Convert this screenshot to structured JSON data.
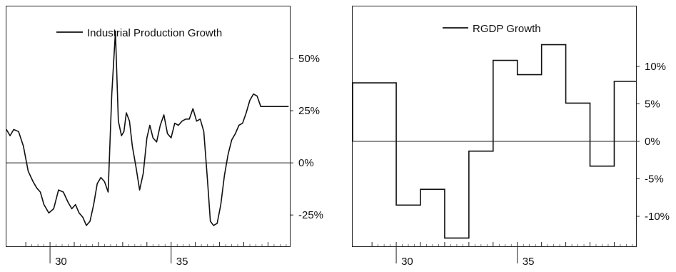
{
  "chart_data": [
    {
      "type": "line",
      "legend": "Industrial Production Growth",
      "legend_position": "top-center",
      "grid": false,
      "xlim": [
        1928.2,
        1939.9
      ],
      "ylim": [
        -40,
        75
      ],
      "x_ticks": [
        1930,
        1935
      ],
      "x_tick_labels": [
        "30",
        "35"
      ],
      "y_ticks": [
        -25,
        0,
        25,
        50
      ],
      "y_tick_labels": [
        "-25%",
        "0%",
        "25%",
        "50%"
      ],
      "x": [
        1928.2,
        1928.4,
        1928.6,
        1928.8,
        1929.0,
        1929.2,
        1929.4,
        1929.6,
        1929.8,
        1930.0,
        1930.2,
        1930.4,
        1930.6,
        1930.8,
        1931.0,
        1931.2,
        1931.4,
        1931.6,
        1931.8,
        1932.0,
        1932.2,
        1932.4,
        1932.6,
        1932.8,
        1932.9,
        1933.0,
        1933.1,
        1933.2,
        1933.35,
        1933.5,
        1933.7,
        1933.9,
        1934.0,
        1934.2,
        1934.35,
        1934.5,
        1934.6,
        1934.75,
        1934.9,
        1935.0,
        1935.1,
        1935.25,
        1935.4,
        1935.55,
        1935.7,
        1935.8,
        1936.0,
        1936.15,
        1936.3,
        1936.45,
        1936.6,
        1936.8,
        1937.0,
        1937.2,
        1937.4,
        1937.5,
        1937.6,
        1937.8,
        1938.0,
        1938.2,
        1938.4,
        1938.6,
        1938.8,
        1939.0,
        1939.2,
        1939.4,
        1939.6,
        1939.8,
        1939.9
      ],
      "y": [
        15,
        13,
        16,
        14,
        8,
        -8,
        -12,
        -20,
        -24,
        -22,
        -14,
        -16,
        -19,
        -22,
        -20,
        -26,
        -30,
        -18,
        -8,
        -9,
        -14,
        33,
        64,
        20,
        13,
        15,
        24,
        19,
        2,
        -13,
        -5,
        13,
        17,
        12,
        11,
        21,
        23,
        15,
        13,
        18,
        17,
        19,
        20,
        20,
        25,
        19,
        22,
        17,
        2,
        -22,
        -30,
        -29,
        -20,
        -9,
        3,
        11,
        14,
        18,
        19,
        24,
        31,
        33,
        27,
        27,
        27,
        27,
        27,
        27,
        27
      ],
      "x_plot": [
        1928.2,
        1928.35,
        1928.5,
        1928.7,
        1928.9,
        1929.1,
        1929.3,
        1929.45,
        1929.6,
        1929.75,
        1929.95,
        1930.15,
        1930.35,
        1930.55,
        1930.75,
        1930.9,
        1931.05,
        1931.2,
        1931.35,
        1931.5,
        1931.65,
        1931.8,
        1931.95,
        1932.1,
        1932.25,
        1932.4,
        1932.55,
        1932.7,
        1932.82,
        1932.95,
        1933.05,
        1933.15,
        1933.28,
        1933.4,
        1933.55,
        1933.7,
        1933.85,
        1934.0,
        1934.12,
        1934.25,
        1934.4,
        1934.55,
        1934.7,
        1934.85,
        1935.0,
        1935.15,
        1935.3,
        1935.45,
        1935.6,
        1935.75,
        1935.9,
        1936.05,
        1936.2,
        1936.35,
        1936.5,
        1936.62,
        1936.75,
        1936.9,
        1937.05,
        1937.2,
        1937.35,
        1937.5,
        1937.65,
        1937.8,
        1937.95,
        1938.1,
        1938.25,
        1938.4,
        1938.55,
        1938.7,
        1938.85,
        1939.0,
        1939.1,
        1939.2,
        1939.3,
        1939.4,
        1939.55,
        1939.7,
        1939.85
      ],
      "y_plot": [
        16,
        13,
        16,
        15,
        8,
        -4,
        -9,
        -12,
        -14,
        -20,
        -24,
        -22,
        -13,
        -14,
        -19,
        -22,
        -20,
        -24,
        -26,
        -30,
        -28,
        -20,
        -10,
        -7,
        -9,
        -14,
        33,
        63,
        20,
        13,
        15,
        24,
        20,
        8,
        -2,
        -13,
        -5,
        12,
        18,
        12,
        10,
        18,
        23,
        14,
        12,
        19,
        18,
        20,
        21,
        21,
        26,
        20,
        21,
        15,
        -8,
        -28,
        -30,
        -29,
        -20,
        -6,
        4,
        11,
        14,
        18,
        19,
        24,
        30,
        33,
        32,
        27,
        27,
        27,
        27,
        27,
        27,
        27,
        27,
        27,
        27
      ]
    },
    {
      "type": "line",
      "step": true,
      "legend": "RGDP Growth",
      "legend_position": "top-center",
      "grid": false,
      "xlim": [
        1928.2,
        1939.9
      ],
      "ylim": [
        -14,
        18
      ],
      "x_ticks": [
        1930,
        1935
      ],
      "x_tick_labels": [
        "30",
        "35"
      ],
      "y_ticks": [
        -10,
        -5,
        0,
        5,
        10
      ],
      "y_tick_labels": [
        "-10%",
        "-5%",
        "0%",
        "5%",
        "10%"
      ],
      "x": [
        1929,
        1930,
        1931,
        1932,
        1933,
        1934,
        1935,
        1936,
        1937,
        1938,
        1939
      ],
      "y": [
        7.8,
        -8.5,
        -6.4,
        -12.9,
        -1.3,
        10.8,
        8.9,
        12.9,
        5.1,
        -3.3,
        8.0
      ]
    }
  ]
}
